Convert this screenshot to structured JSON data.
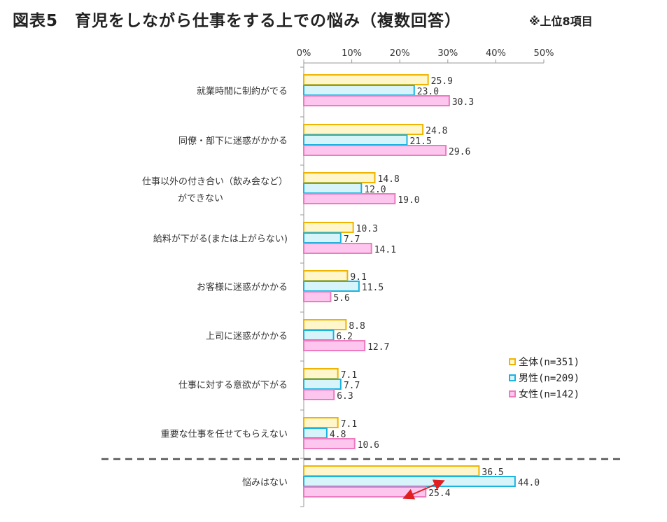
{
  "title": "図表5　育児をしながら仕事をする上での悩み（複数回答）",
  "note": "※上位8項目",
  "colors": {
    "all_fill": "#FFF6CC",
    "all_stroke": "#F0B400",
    "male_fill": "#D8F4FB",
    "male_stroke": "#1BB3E0",
    "female_fill": "#FCC6EE",
    "female_stroke": "#EE7ABF",
    "axis": "#999999",
    "separator": "#555555",
    "arrow": "#E02020"
  },
  "chart_data": {
    "type": "bar",
    "orientation": "horizontal",
    "xlim": [
      0,
      50
    ],
    "ticks": [
      "0%",
      "10%",
      "20%",
      "30%",
      "40%",
      "50%"
    ],
    "categories": [
      [
        "就業時間に制約がでる"
      ],
      [
        "同僚・部下に迷惑がかかる"
      ],
      [
        "仕事以外の付き合い（飲み会など）",
        "ができない"
      ],
      [
        "給料が下がる(または上がらない)"
      ],
      [
        "お客様に迷惑がかかる"
      ],
      [
        "上司に迷惑がかかる"
      ],
      [
        "仕事に対する意欲が下がる"
      ],
      [
        "重要な仕事を任せてもらえない"
      ],
      [
        "悩みはない"
      ]
    ],
    "series": [
      {
        "name": "全体(n=351)",
        "key": "all",
        "values": [
          25.9,
          24.8,
          14.8,
          10.3,
          9.1,
          8.8,
          7.1,
          7.1,
          36.5
        ],
        "labels": [
          "25.9",
          "24.8",
          "14.8",
          "10.3",
          "9.1",
          "8.8",
          "7.1",
          "7.1",
          "36.5"
        ]
      },
      {
        "name": "男性(n=209)",
        "key": "male",
        "values": [
          23.0,
          21.5,
          12.0,
          7.7,
          11.5,
          6.2,
          7.7,
          4.8,
          44.0
        ],
        "labels": [
          "23.0",
          "21.5",
          "12.0",
          "7.7",
          "11.5",
          "6.2",
          "7.7",
          "4.8",
          "44.0"
        ]
      },
      {
        "name": "女性(n=142)",
        "key": "female",
        "values": [
          30.3,
          29.6,
          19.0,
          14.1,
          5.6,
          12.7,
          6.3,
          10.6,
          25.4
        ],
        "labels": [
          "30.3",
          "29.6",
          "19.0",
          "14.1",
          "5.6",
          "12.7",
          "6.3",
          "10.6",
          "25.4"
        ]
      }
    ],
    "legend_position": "right",
    "separator_before_last": true,
    "annotation": "double-headed arrow between 男性 and 女性 bars of 悩みはない"
  }
}
